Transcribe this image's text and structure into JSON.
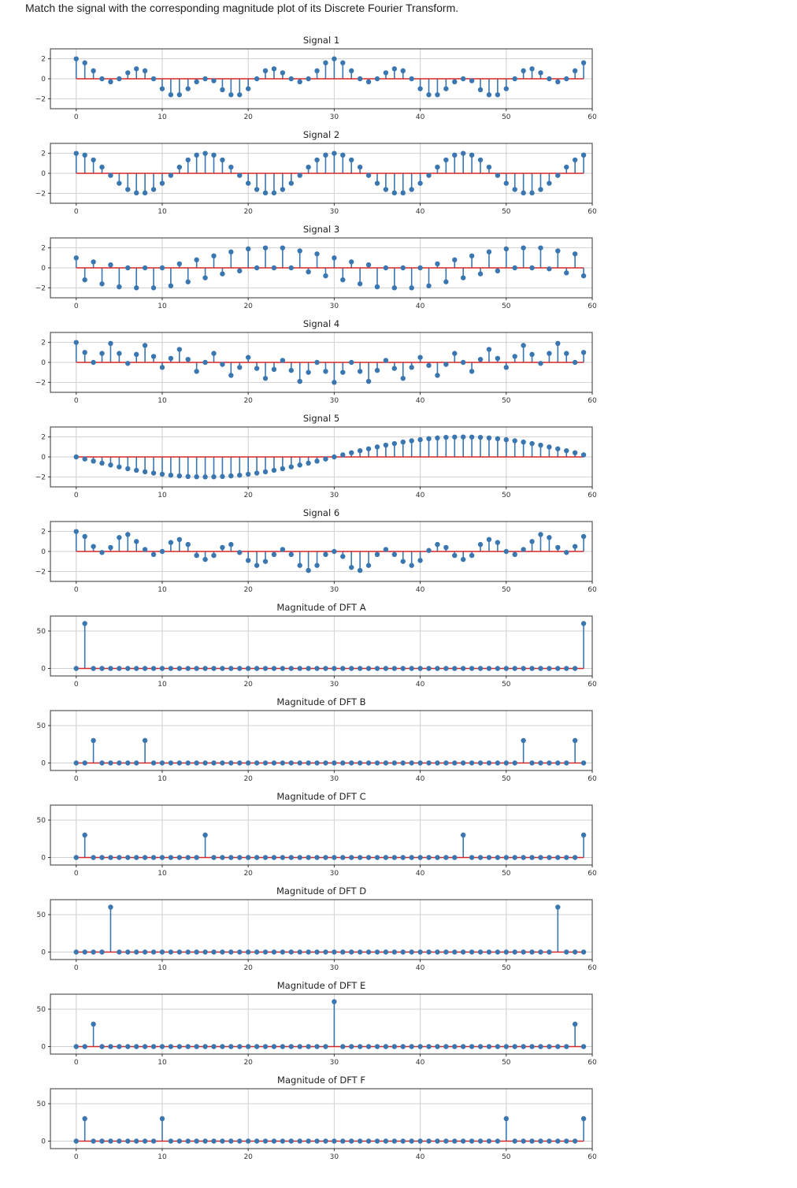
{
  "question": "Match the signal with the corresponding magnitude plot of its Discrete Fourier Transform.",
  "colors": {
    "stem": "#3a76b0",
    "baseline": "#d62728",
    "grid": "#d0d0d0",
    "frame": "#333333"
  },
  "chart_data": [
    {
      "type": "stem",
      "title": "Signal 1",
      "xlim": [
        -3,
        60
      ],
      "xticks": [
        0,
        10,
        20,
        30,
        40,
        50,
        60
      ],
      "ylim": [
        -3,
        3
      ],
      "yticks": [
        -2,
        0,
        2
      ],
      "grid": true,
      "x_start": 0,
      "values": [
        2.0,
        1.6,
        0.8,
        0.0,
        -0.3,
        0.0,
        0.6,
        1.0,
        0.8,
        0.0,
        -1.0,
        -1.6,
        -1.6,
        -1.0,
        -0.3,
        0.0,
        -0.2,
        -1.1,
        -1.6,
        -1.6,
        -1.0,
        0.0,
        0.8,
        1.0,
        0.6,
        0.0,
        -0.3,
        0.0,
        0.8,
        1.6,
        2.0,
        1.6,
        0.8,
        0.0,
        -0.3,
        0.0,
        0.6,
        1.0,
        0.8,
        0.0,
        -1.0,
        -1.6,
        -1.6,
        -1.0,
        -0.3,
        0.0,
        -0.2,
        -1.1,
        -1.6,
        -1.6,
        -1.0,
        0.0,
        0.8,
        1.0,
        0.6,
        0.0,
        -0.3,
        0.0,
        0.8,
        1.6
      ]
    },
    {
      "type": "stem",
      "title": "Signal 2",
      "xlim": [
        -3,
        60
      ],
      "xticks": [
        0,
        10,
        20,
        30,
        40,
        50,
        60
      ],
      "ylim": [
        -3,
        3
      ],
      "yticks": [
        -2,
        0,
        2
      ],
      "grid": true,
      "x_start": 0,
      "values": [
        2.0,
        1.83,
        1.34,
        0.62,
        -0.21,
        -1.0,
        -1.62,
        -1.96,
        -1.96,
        -1.62,
        -1.0,
        -0.21,
        0.62,
        1.34,
        1.83,
        2.0,
        1.83,
        1.34,
        0.62,
        -0.21,
        -1.0,
        -1.62,
        -1.96,
        -1.96,
        -1.62,
        -1.0,
        -0.21,
        0.62,
        1.34,
        1.83,
        2.0,
        1.83,
        1.34,
        0.62,
        -0.21,
        -1.0,
        -1.62,
        -1.96,
        -1.96,
        -1.62,
        -1.0,
        -0.21,
        0.62,
        1.34,
        1.83,
        2.0,
        1.83,
        1.34,
        0.62,
        -0.21,
        -1.0,
        -1.62,
        -1.96,
        -1.96,
        -1.62,
        -1.0,
        -0.21,
        0.62,
        1.34,
        1.83
      ]
    },
    {
      "type": "stem",
      "title": "Signal 3",
      "xlim": [
        -3,
        60
      ],
      "xticks": [
        0,
        10,
        20,
        30,
        40,
        50,
        60
      ],
      "ylim": [
        -3,
        3
      ],
      "yticks": [
        -2,
        0,
        2
      ],
      "grid": true,
      "x_start": 0,
      "values": [
        1.0,
        -1.2,
        0.6,
        -1.6,
        0.3,
        -1.9,
        0.0,
        -2.0,
        0.0,
        -2.0,
        0.0,
        -1.8,
        0.4,
        -1.4,
        0.8,
        -1.0,
        1.2,
        -0.6,
        1.6,
        -0.3,
        1.9,
        0.0,
        2.0,
        0.0,
        2.0,
        0.0,
        1.7,
        -0.4,
        1.4,
        -0.8,
        1.0,
        -1.2,
        0.6,
        -1.6,
        0.3,
        -1.9,
        0.0,
        -2.0,
        0.0,
        -2.0,
        0.0,
        -1.8,
        0.4,
        -1.4,
        0.8,
        -1.0,
        1.2,
        -0.6,
        1.6,
        -0.3,
        1.9,
        0.0,
        2.0,
        0.0,
        2.0,
        -0.1,
        1.7,
        -0.5,
        1.4,
        -0.8
      ]
    },
    {
      "type": "stem",
      "title": "Signal 4",
      "xlim": [
        -3,
        60
      ],
      "xticks": [
        0,
        10,
        20,
        30,
        40,
        50,
        60
      ],
      "ylim": [
        -3,
        3
      ],
      "yticks": [
        -2,
        0,
        2
      ],
      "grid": true,
      "x_start": 0,
      "values": [
        2.0,
        1.0,
        0.0,
        0.9,
        1.9,
        0.9,
        -0.1,
        0.8,
        1.7,
        0.6,
        -0.5,
        0.4,
        1.3,
        0.3,
        -0.9,
        0.0,
        0.9,
        -0.2,
        -1.3,
        -0.5,
        0.5,
        -0.6,
        -1.6,
        -0.7,
        0.2,
        -0.8,
        -1.9,
        -1.0,
        0.0,
        -0.9,
        -2.0,
        -1.0,
        0.0,
        -0.9,
        -1.9,
        -0.8,
        0.2,
        -0.6,
        -1.6,
        -0.5,
        0.5,
        -0.3,
        -1.3,
        -0.2,
        0.9,
        0.0,
        -0.9,
        0.3,
        1.3,
        0.4,
        -0.5,
        0.6,
        1.7,
        0.8,
        -0.1,
        0.9,
        1.9,
        0.9,
        0.0,
        1.0
      ]
    },
    {
      "type": "stem",
      "title": "Signal 5",
      "xlim": [
        -3,
        60
      ],
      "xticks": [
        0,
        10,
        20,
        30,
        40,
        50,
        60
      ],
      "ylim": [
        -3,
        3
      ],
      "yticks": [
        -2,
        0,
        2
      ],
      "grid": true,
      "x_start": 0,
      "values": [
        0.0,
        -0.21,
        -0.42,
        -0.62,
        -0.81,
        -1.0,
        -1.18,
        -1.34,
        -1.49,
        -1.62,
        -1.73,
        -1.83,
        -1.9,
        -1.96,
        -1.99,
        -2.0,
        -1.99,
        -1.96,
        -1.9,
        -1.83,
        -1.73,
        -1.62,
        -1.49,
        -1.34,
        -1.18,
        -1.0,
        -0.81,
        -0.62,
        -0.42,
        -0.21,
        0.0,
        0.21,
        0.42,
        0.62,
        0.81,
        1.0,
        1.18,
        1.34,
        1.49,
        1.62,
        1.73,
        1.83,
        1.9,
        1.96,
        1.99,
        2.0,
        1.99,
        1.96,
        1.9,
        1.83,
        1.73,
        1.62,
        1.49,
        1.34,
        1.18,
        1.0,
        0.81,
        0.62,
        0.42,
        0.21
      ]
    },
    {
      "type": "stem",
      "title": "Signal 6",
      "xlim": [
        -3,
        60
      ],
      "xticks": [
        0,
        10,
        20,
        30,
        40,
        50,
        60
      ],
      "ylim": [
        -3,
        3
      ],
      "yticks": [
        -2,
        0,
        2
      ],
      "grid": true,
      "x_start": 0,
      "values": [
        2.0,
        1.5,
        0.5,
        -0.1,
        0.4,
        1.4,
        1.7,
        1.0,
        0.2,
        -0.3,
        0.0,
        0.9,
        1.2,
        0.7,
        -0.4,
        -0.8,
        -0.4,
        0.4,
        0.7,
        -0.1,
        -0.9,
        -1.4,
        -1.0,
        -0.3,
        0.2,
        -0.3,
        -1.4,
        -1.9,
        -1.4,
        -0.3,
        0.0,
        -0.5,
        -1.6,
        -1.9,
        -1.4,
        -0.3,
        0.2,
        -0.3,
        -1.0,
        -1.4,
        -0.9,
        0.1,
        0.7,
        0.4,
        -0.4,
        -0.8,
        -0.4,
        0.7,
        1.2,
        0.9,
        0.0,
        -0.3,
        0.2,
        1.0,
        1.7,
        1.4,
        0.4,
        -0.1,
        0.5,
        1.5
      ]
    },
    {
      "type": "stem",
      "title": "Magnitude of DFT A",
      "xlim": [
        -3,
        60
      ],
      "xticks": [
        0,
        10,
        20,
        30,
        40,
        50,
        60
      ],
      "ylim": [
        -10,
        70
      ],
      "yticks": [
        0,
        50
      ],
      "grid": true,
      "x_start": 0,
      "length": 60,
      "spikes": [
        [
          1,
          60
        ],
        [
          59,
          60
        ]
      ]
    },
    {
      "type": "stem",
      "title": "Magnitude of DFT B",
      "xlim": [
        -3,
        60
      ],
      "xticks": [
        0,
        10,
        20,
        30,
        40,
        50,
        60
      ],
      "ylim": [
        -10,
        70
      ],
      "yticks": [
        0,
        50
      ],
      "grid": true,
      "x_start": 0,
      "length": 60,
      "spikes": [
        [
          2,
          30
        ],
        [
          8,
          30
        ],
        [
          52,
          30
        ],
        [
          58,
          30
        ]
      ]
    },
    {
      "type": "stem",
      "title": "Magnitude of DFT C",
      "xlim": [
        -3,
        60
      ],
      "xticks": [
        0,
        10,
        20,
        30,
        40,
        50,
        60
      ],
      "ylim": [
        -10,
        70
      ],
      "yticks": [
        0,
        50
      ],
      "grid": true,
      "x_start": 0,
      "length": 60,
      "spikes": [
        [
          1,
          30
        ],
        [
          15,
          30
        ],
        [
          45,
          30
        ],
        [
          59,
          30
        ]
      ]
    },
    {
      "type": "stem",
      "title": "Magnitude of DFT D",
      "xlim": [
        -3,
        60
      ],
      "xticks": [
        0,
        10,
        20,
        30,
        40,
        50,
        60
      ],
      "ylim": [
        -10,
        70
      ],
      "yticks": [
        0,
        50
      ],
      "grid": true,
      "x_start": 0,
      "length": 60,
      "spikes": [
        [
          4,
          60
        ],
        [
          56,
          60
        ]
      ]
    },
    {
      "type": "stem",
      "title": "Magnitude of DFT E",
      "xlim": [
        -3,
        60
      ],
      "xticks": [
        0,
        10,
        20,
        30,
        40,
        50,
        60
      ],
      "ylim": [
        -10,
        70
      ],
      "yticks": [
        0,
        50
      ],
      "grid": true,
      "x_start": 0,
      "length": 60,
      "spikes": [
        [
          2,
          30
        ],
        [
          30,
          60
        ],
        [
          58,
          30
        ]
      ]
    },
    {
      "type": "stem",
      "title": "Magnitude of DFT F",
      "xlim": [
        -3,
        60
      ],
      "xticks": [
        0,
        10,
        20,
        30,
        40,
        50,
        60
      ],
      "ylim": [
        -10,
        70
      ],
      "yticks": [
        0,
        50
      ],
      "grid": true,
      "x_start": 0,
      "length": 60,
      "spikes": [
        [
          1,
          30
        ],
        [
          10,
          30
        ],
        [
          50,
          30
        ],
        [
          59,
          30
        ]
      ]
    }
  ]
}
